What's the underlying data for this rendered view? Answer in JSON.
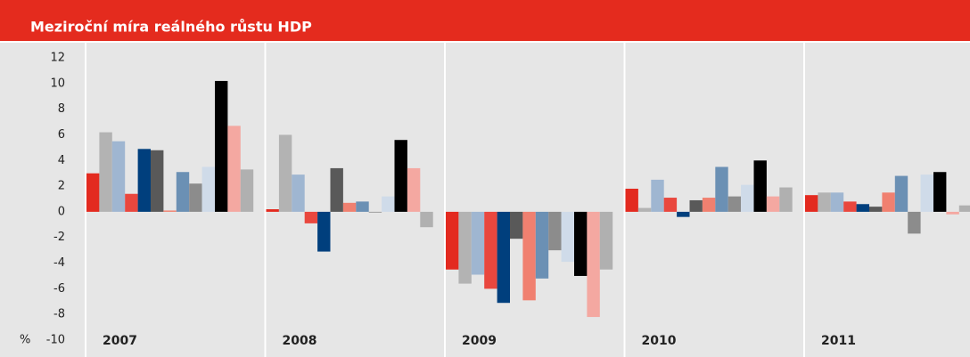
{
  "chart_data": {
    "type": "bar",
    "title": "Meziroční míra reálného růstu HDP",
    "y_label": "%",
    "categories": [
      "2007",
      "2008",
      "2009",
      "2010",
      "2011"
    ],
    "series": [
      {
        "color": "#e32a1f",
        "values": [
          3.0,
          0.2,
          -4.5,
          1.8,
          1.3
        ]
      },
      {
        "color": "#b3b3b3",
        "values": [
          6.2,
          6.0,
          -5.6,
          0.3,
          1.5
        ]
      },
      {
        "color": "#9fb6d1",
        "values": [
          5.5,
          2.9,
          -4.9,
          2.5,
          1.5
        ]
      },
      {
        "color": "#e9473e",
        "values": [
          1.4,
          -0.9,
          -6.0,
          1.1,
          0.8
        ]
      },
      {
        "color": "#003f7d",
        "values": [
          4.9,
          -3.1,
          -7.1,
          -0.4,
          0.6
        ]
      },
      {
        "color": "#595959",
        "values": [
          4.8,
          3.4,
          -2.1,
          0.9,
          0.4
        ]
      },
      {
        "color": "#f08070",
        "values": [
          0.1,
          0.7,
          -6.9,
          1.1,
          1.5
        ]
      },
      {
        "color": "#6b90b4",
        "values": [
          3.1,
          0.8,
          -5.2,
          3.5,
          2.8
        ]
      },
      {
        "color": "#8c8c8c",
        "values": [
          2.2,
          0.0,
          -3.0,
          1.2,
          -1.7
        ]
      },
      {
        "color": "#cfdbe9",
        "values": [
          3.5,
          1.2,
          -3.9,
          2.1,
          2.9
        ]
      },
      {
        "color": "#000000",
        "values": [
          10.2,
          5.6,
          -5.0,
          4.0,
          3.1
        ]
      },
      {
        "color": "#f4a8a1",
        "values": [
          6.7,
          3.4,
          -8.2,
          1.2,
          -0.2
        ]
      },
      {
        "color": "#b0b0b0",
        "values": [
          3.3,
          -1.2,
          -4.5,
          1.9,
          0.5
        ]
      }
    ],
    "ylim": [
      -10,
      12
    ],
    "yticks": [
      -10,
      -8,
      -6,
      -4,
      -2,
      0,
      2,
      4,
      6,
      8,
      10,
      12
    ],
    "grid": false
  }
}
